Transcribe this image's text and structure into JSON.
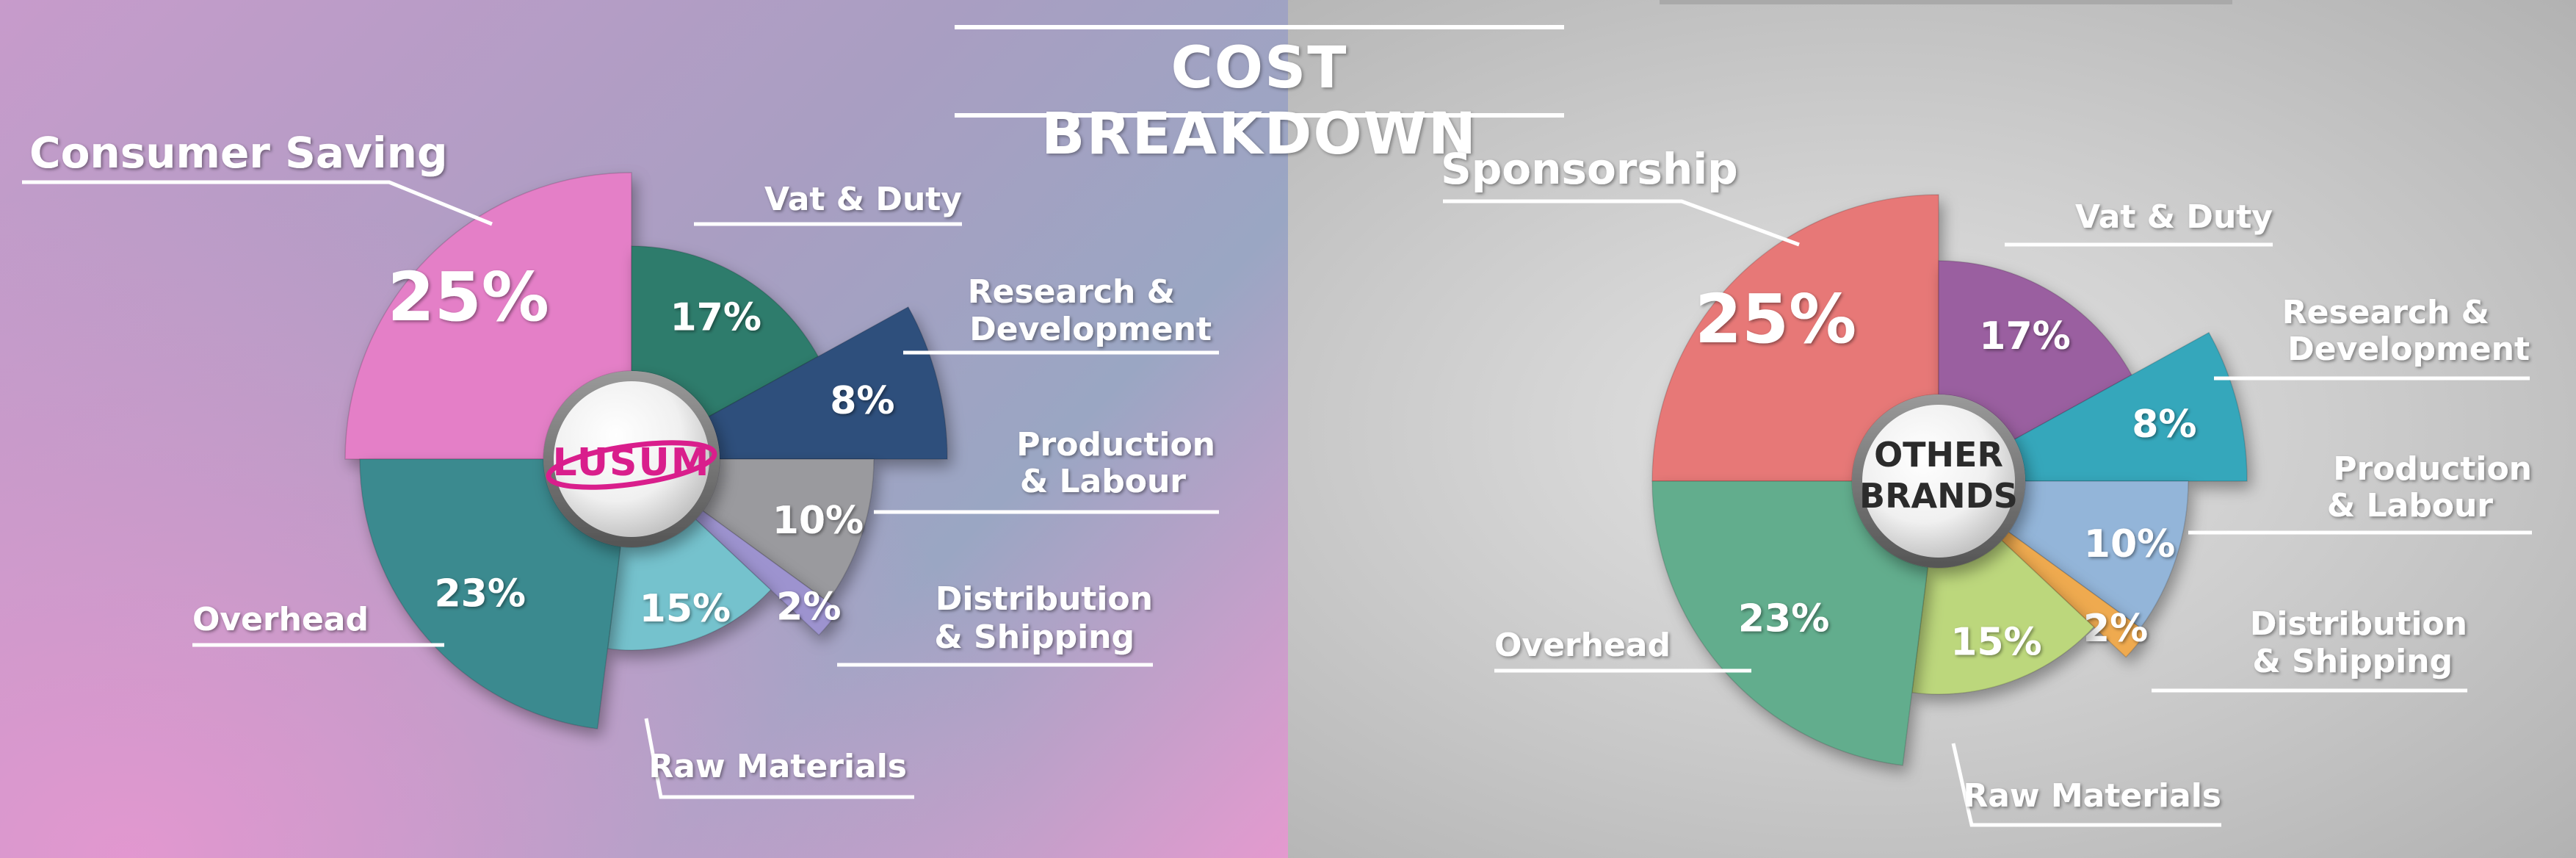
{
  "title": "COST BREAKDOWN",
  "chart_data": [
    {
      "type": "pie",
      "center_text": "LUSUM",
      "slices": [
        {
          "label": "Consumer Saving",
          "value": 25,
          "value_label": "25%",
          "color": "#e47fc7"
        },
        {
          "label": "Vat & Duty",
          "value": 17,
          "value_label": "17%",
          "color": "#2e7c6c"
        },
        {
          "label": "Research & Development",
          "value": 8,
          "value_label": "8%",
          "color": "#2f4f7c"
        },
        {
          "label": "Production & Labour",
          "value": 10,
          "value_label": "10%",
          "color": "#9a9a9e"
        },
        {
          "label": "Distribution & Shipping",
          "value": 2,
          "value_label": "2%",
          "color": "#9d93cf"
        },
        {
          "label": "Raw Materials",
          "value": 15,
          "value_label": "15%",
          "color": "#74c2cd"
        },
        {
          "label": "Overhead",
          "value": 23,
          "value_label": "23%",
          "color": "#3b8a8f"
        }
      ]
    },
    {
      "type": "pie",
      "center_text": "OTHER BRANDS",
      "slices": [
        {
          "label": "Sponsorship",
          "value": 25,
          "value_label": "25%",
          "color": "#e77877"
        },
        {
          "label": "Vat & Duty",
          "value": 17,
          "value_label": "17%",
          "color": "#9a5fa0"
        },
        {
          "label": "Research & Development",
          "value": 8,
          "value_label": "8%",
          "color": "#36a7bb"
        },
        {
          "label": "Production & Labour",
          "value": 10,
          "value_label": "10%",
          "color": "#93b5d9"
        },
        {
          "label": "Distribution & Shipping",
          "value": 2,
          "value_label": "2%",
          "color": "#efaa50"
        },
        {
          "label": "Raw Materials",
          "value": 15,
          "value_label": "15%",
          "color": "#bcd77c"
        },
        {
          "label": "Overhead",
          "value": 23,
          "value_label": "23%",
          "color": "#62ad8d"
        }
      ]
    }
  ]
}
